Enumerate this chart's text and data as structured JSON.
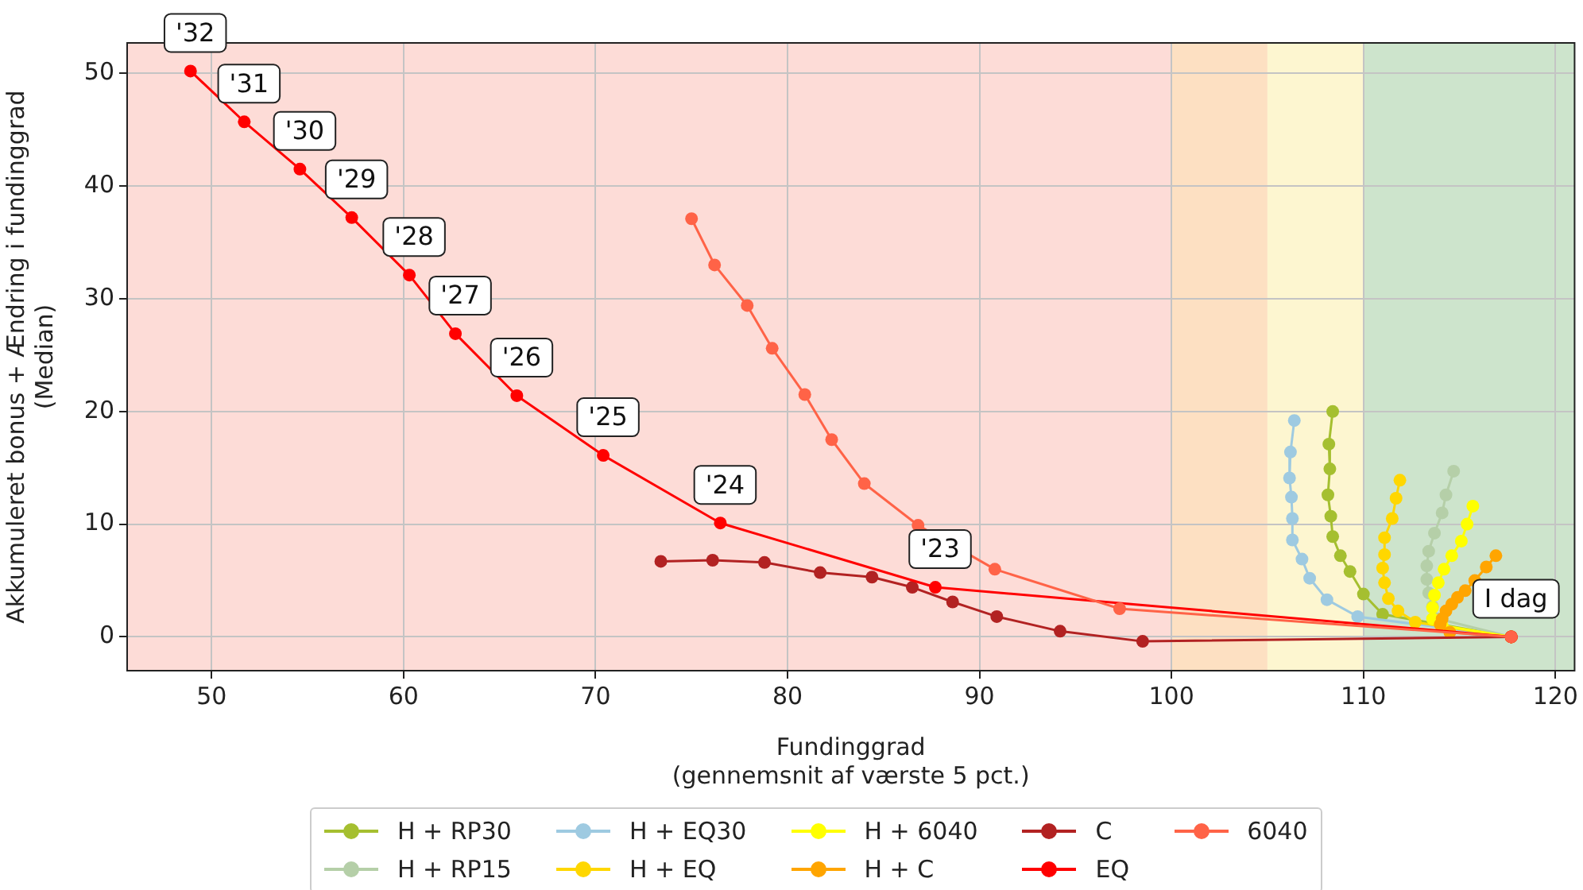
{
  "chart_data": {
    "type": "line",
    "xlabel": "Fundinggrad\n(gennemsnit af værste 5 pct.)",
    "ylabel": "Akkumuleret bonus + Ændring i fundinggrad\n(Median)",
    "xlim": [
      45.6,
      121
    ],
    "ylim": [
      -3,
      52.7
    ],
    "xticks": [
      50,
      60,
      70,
      80,
      90,
      100,
      110,
      120
    ],
    "yticks": [
      0,
      10,
      20,
      30,
      40,
      50
    ],
    "grid": true,
    "legend": "bottom",
    "marker": "circle",
    "bands": [
      {
        "axis": "x",
        "from": 45.6,
        "to": 100,
        "color": "#fddcd7"
      },
      {
        "axis": "x",
        "from": 100,
        "to": 105,
        "color": "#fde0c2"
      },
      {
        "axis": "x",
        "from": 105,
        "to": 110,
        "color": "#fdf6d0"
      },
      {
        "axis": "x",
        "from": 110,
        "to": 121,
        "color": "#cde4cc"
      }
    ],
    "series": [
      {
        "name": "H + RP30",
        "color": "#a5bf30",
        "x": [
          108.4,
          108.2,
          108.25,
          108.15,
          108.3,
          108.4,
          108.8,
          109.3,
          110.0,
          111.0,
          117.7
        ],
        "values": [
          20.0,
          17.1,
          14.9,
          12.6,
          10.7,
          8.9,
          7.2,
          5.8,
          3.8,
          2.0,
          0
        ]
      },
      {
        "name": "H + RP15",
        "color": "#b5cfa8",
        "x": [
          114.7,
          114.3,
          114.1,
          113.7,
          113.4,
          113.3,
          113.3,
          113.4,
          113.6,
          113.9,
          117.7
        ],
        "values": [
          14.7,
          12.6,
          11.0,
          9.2,
          7.6,
          6.3,
          5.1,
          3.9,
          2.7,
          1.6,
          0
        ]
      },
      {
        "name": "H + EQ30",
        "color": "#9ecae1",
        "x": [
          106.4,
          106.2,
          106.15,
          106.25,
          106.3,
          106.3,
          106.8,
          107.2,
          108.1,
          109.7,
          117.7
        ],
        "values": [
          19.2,
          16.4,
          14.1,
          12.4,
          10.5,
          8.6,
          6.9,
          5.2,
          3.3,
          1.8,
          0
        ]
      },
      {
        "name": "H + EQ",
        "color": "#ffd700",
        "x": [
          111.9,
          111.7,
          111.5,
          111.1,
          111.1,
          111.0,
          111.1,
          111.3,
          111.8,
          112.7,
          117.7
        ],
        "values": [
          13.9,
          12.3,
          10.5,
          8.8,
          7.3,
          6.1,
          4.8,
          3.4,
          2.3,
          1.3,
          0
        ]
      },
      {
        "name": "H + 6040",
        "color": "#ffff00",
        "x": [
          115.7,
          115.4,
          115.1,
          114.6,
          114.2,
          113.9,
          113.7,
          113.6,
          113.6,
          114.1,
          117.7
        ],
        "values": [
          11.6,
          10.0,
          8.5,
          7.2,
          6.0,
          4.8,
          3.7,
          2.6,
          1.6,
          1.0,
          0
        ]
      },
      {
        "name": "H + C",
        "color": "#ffa500",
        "x": [
          116.9,
          116.4,
          115.8,
          115.3,
          114.9,
          114.6,
          114.3,
          114.1,
          114.0,
          114.5,
          117.7
        ],
        "values": [
          7.2,
          6.2,
          5.0,
          4.1,
          3.5,
          2.9,
          2.3,
          1.6,
          1.1,
          0.4,
          0
        ]
      },
      {
        "name": "C",
        "color": "#b22222",
        "x": [
          73.4,
          76.1,
          78.8,
          81.7,
          84.4,
          86.5,
          88.6,
          90.9,
          94.2,
          98.5,
          117.7
        ],
        "values": [
          6.7,
          6.8,
          6.6,
          5.7,
          5.3,
          4.4,
          3.1,
          1.8,
          0.5,
          -0.4,
          0
        ]
      },
      {
        "name": "EQ",
        "color": "#ff0000",
        "x": [
          48.9,
          51.7,
          54.6,
          57.3,
          60.3,
          62.7,
          65.9,
          70.4,
          76.5,
          87.7,
          117.7
        ],
        "values": [
          50.2,
          45.7,
          41.5,
          37.2,
          32.1,
          26.9,
          21.4,
          16.1,
          10.1,
          4.4,
          0
        ]
      },
      {
        "name": "6040",
        "color": "#ff6347",
        "x": [
          75.0,
          76.2,
          77.9,
          79.2,
          80.9,
          82.3,
          84.0,
          86.8,
          90.8,
          97.3,
          117.7
        ],
        "values": [
          37.1,
          33.0,
          29.4,
          25.6,
          21.5,
          17.5,
          13.6,
          9.9,
          6.0,
          2.5,
          0
        ]
      }
    ],
    "annotations": [
      {
        "text": "'32",
        "x": 48.9,
        "y": 50.2
      },
      {
        "text": "'31",
        "x": 51.7,
        "y": 45.7
      },
      {
        "text": "'30",
        "x": 54.6,
        "y": 41.5
      },
      {
        "text": "'29",
        "x": 57.3,
        "y": 37.2
      },
      {
        "text": "'28",
        "x": 60.3,
        "y": 32.1
      },
      {
        "text": "'27",
        "x": 62.7,
        "y": 26.9
      },
      {
        "text": "'26",
        "x": 65.9,
        "y": 21.4
      },
      {
        "text": "'25",
        "x": 70.4,
        "y": 16.1
      },
      {
        "text": "'24",
        "x": 76.5,
        "y": 10.1
      },
      {
        "text": "'23",
        "x": 87.7,
        "y": 4.4
      },
      {
        "text": "I dag",
        "x": 117.7,
        "y": 0
      }
    ]
  }
}
